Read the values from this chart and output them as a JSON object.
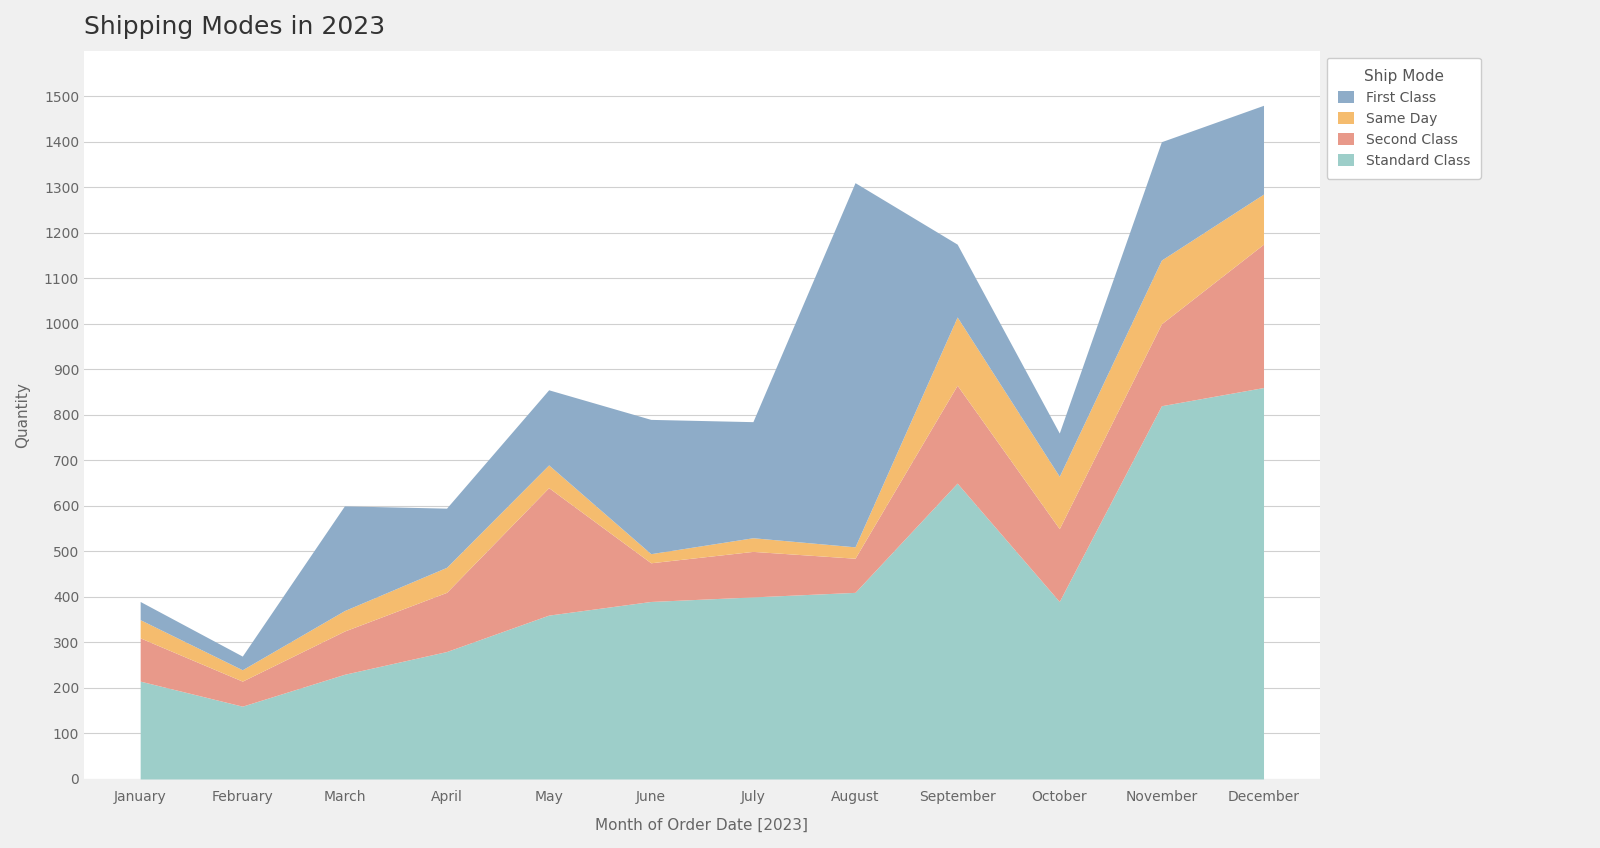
{
  "title": "Shipping Modes in 2023",
  "xlabel": "Month of Order Date [2023]",
  "ylabel": "Quantity",
  "months": [
    "January",
    "February",
    "March",
    "April",
    "May",
    "June",
    "July",
    "August",
    "September",
    "October",
    "November",
    "December"
  ],
  "series": {
    "Standard Class": [
      215,
      160,
      230,
      280,
      360,
      390,
      400,
      410,
      650,
      390,
      820,
      860
    ],
    "Second Class": [
      95,
      55,
      95,
      130,
      280,
      85,
      100,
      75,
      215,
      160,
      180,
      315
    ],
    "Same Day": [
      40,
      25,
      45,
      55,
      50,
      20,
      30,
      25,
      150,
      115,
      140,
      110
    ],
    "First Class": [
      40,
      30,
      230,
      130,
      165,
      295,
      255,
      800,
      160,
      95,
      260,
      195
    ]
  },
  "colors": {
    "Standard Class": "#9dcec9",
    "Second Class": "#e8998a",
    "Same Day": "#f5bc6e",
    "First Class": "#8eacc8"
  },
  "stack_order": [
    "Standard Class",
    "Second Class",
    "Same Day",
    "First Class"
  ],
  "legend_order": [
    "First Class",
    "Same Day",
    "Second Class",
    "Standard Class"
  ],
  "legend_title": "Ship Mode",
  "ylim": [
    0,
    1600
  ],
  "yticks": [
    0,
    100,
    200,
    300,
    400,
    500,
    600,
    700,
    800,
    900,
    1000,
    1100,
    1200,
    1300,
    1400,
    1500
  ],
  "bg_color": "#f0f0f0",
  "plot_bg_color": "#ffffff",
  "grid_color": "#d0d0d0",
  "title_fontsize": 18,
  "axis_label_fontsize": 11,
  "tick_fontsize": 10,
  "legend_fontsize": 10
}
